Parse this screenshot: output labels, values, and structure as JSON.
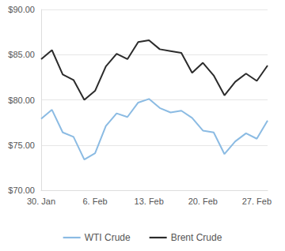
{
  "chart_data": {
    "type": "line",
    "categories": [
      "30. Jan",
      null,
      null,
      null,
      null,
      "6. Feb",
      null,
      null,
      null,
      null,
      "13. Feb",
      null,
      null,
      null,
      null,
      "20. Feb",
      null,
      null,
      null,
      null,
      "27. Feb",
      null
    ],
    "series": [
      {
        "name": "WTI Crude",
        "color": "#8bbbe3",
        "values": [
          77.9,
          78.9,
          76.4,
          75.9,
          73.4,
          74.1,
          77.1,
          78.5,
          78.1,
          79.7,
          80.1,
          79.1,
          78.6,
          78.8,
          78.0,
          76.6,
          76.4,
          74.0,
          75.4,
          76.3,
          75.7,
          77.7
        ]
      },
      {
        "name": "Brent Crude",
        "color": "#2b2b2b",
        "values": [
          84.5,
          85.5,
          82.8,
          82.2,
          80.0,
          81.0,
          83.7,
          85.1,
          84.5,
          86.4,
          86.6,
          85.6,
          85.4,
          85.2,
          83.0,
          84.1,
          82.7,
          80.5,
          82.0,
          82.9,
          82.1,
          83.8
        ]
      }
    ],
    "ylim": [
      70,
      90
    ],
    "yticks": [
      {
        "value": 70,
        "label": "$70.00"
      },
      {
        "value": 75,
        "label": "$75.00"
      },
      {
        "value": 80,
        "label": "$80.00"
      },
      {
        "value": 85,
        "label": "$85.00"
      },
      {
        "value": 90,
        "label": "$90.00"
      }
    ],
    "grid": true,
    "legend": "bottom"
  }
}
